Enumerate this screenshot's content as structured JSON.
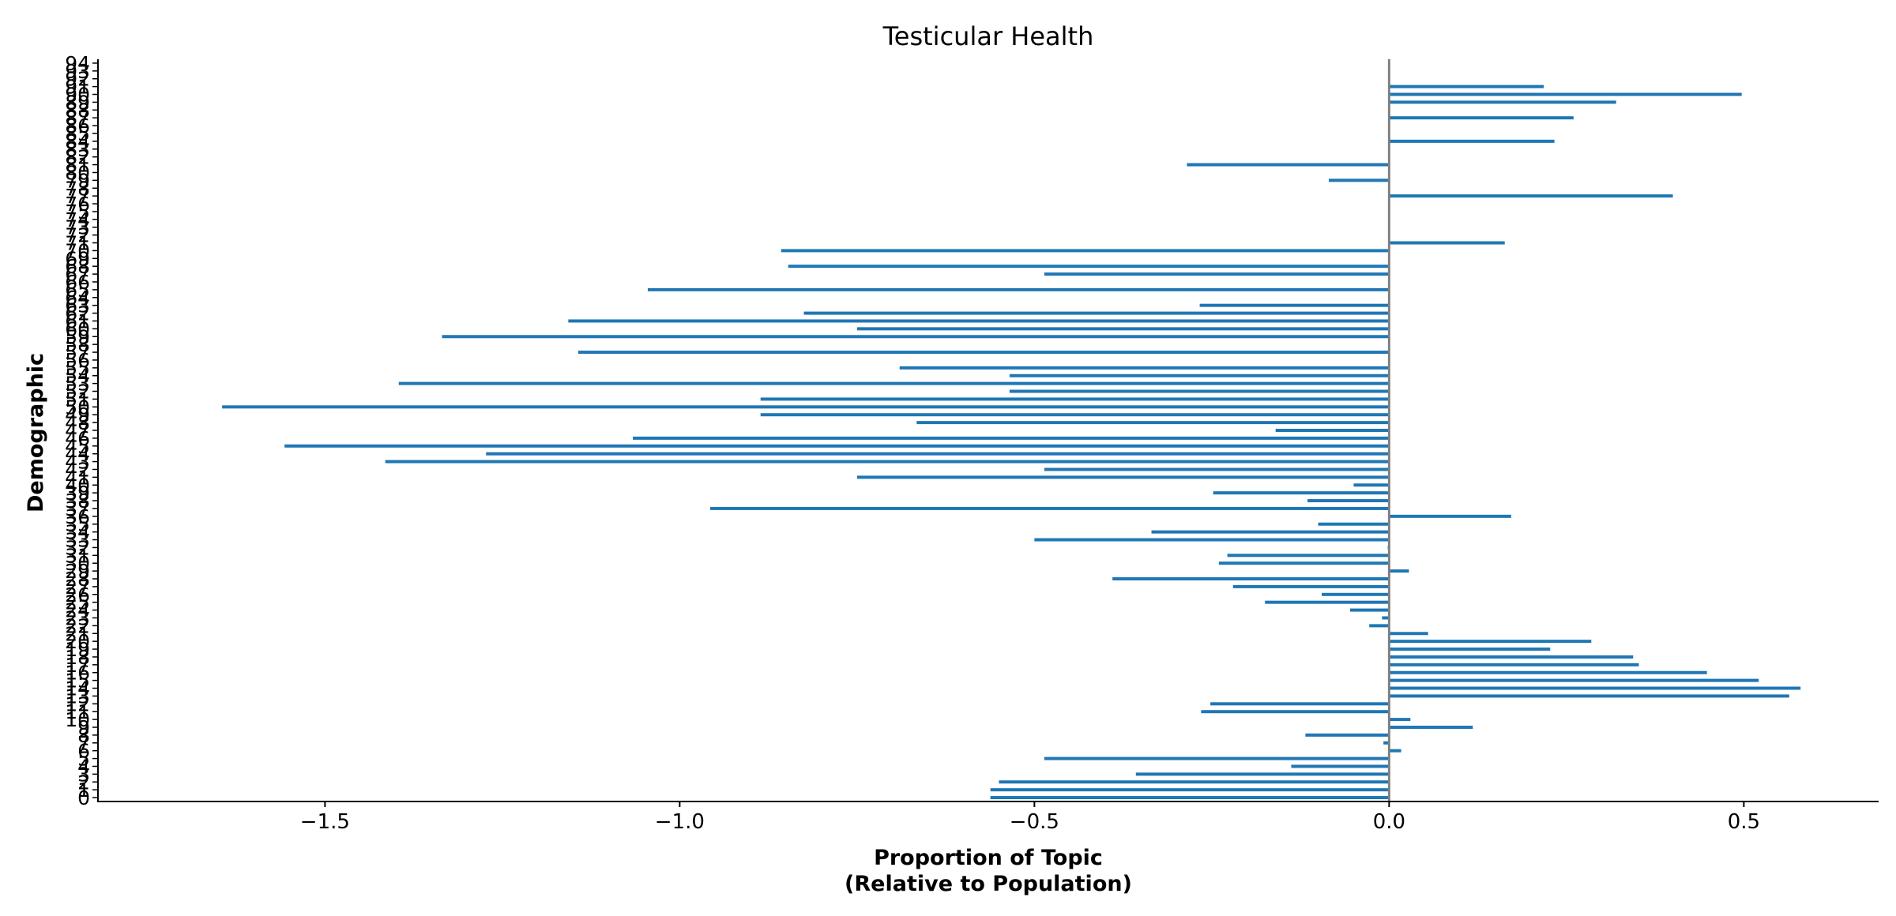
{
  "chart_data": {
    "type": "bar",
    "orientation": "horizontal",
    "title": "Testicular Health",
    "xlabel": [
      "Proportion of Topic",
      "(Relative to Population)"
    ],
    "ylabel": "Demographic",
    "xlim": [
      -1.82,
      0.69
    ],
    "ylim": [
      -0.5,
      94.5
    ],
    "xticks": [
      -1.5,
      -1.0,
      -0.5,
      0.0,
      0.5
    ],
    "xtick_labels": [
      "−1.5",
      "−1.0",
      "−0.5",
      "0.0",
      "0.5"
    ],
    "yticks_step": 1,
    "zero_line": true,
    "grid": false,
    "spines": [
      "left",
      "bottom"
    ],
    "bar_color": "#1f77b4",
    "zero_line_color": "#808080",
    "categories": [
      0,
      1,
      2,
      3,
      4,
      5,
      6,
      7,
      8,
      9,
      10,
      11,
      12,
      13,
      14,
      15,
      16,
      17,
      18,
      19,
      20,
      21,
      22,
      23,
      24,
      25,
      26,
      27,
      28,
      29,
      30,
      31,
      32,
      33,
      34,
      35,
      36,
      37,
      38,
      39,
      40,
      41,
      42,
      43,
      44,
      45,
      46,
      47,
      48,
      49,
      50,
      51,
      52,
      53,
      54,
      55,
      56,
      57,
      58,
      59,
      60,
      61,
      62,
      63,
      64,
      65,
      66,
      67,
      68,
      69,
      70,
      71,
      72,
      73,
      74,
      75,
      76,
      77,
      78,
      79,
      80,
      81,
      82,
      83,
      84,
      85,
      86,
      87,
      88,
      89,
      90,
      91,
      92,
      93,
      94
    ],
    "values": [
      -0.562,
      -0.562,
      -0.55,
      -0.357,
      -0.138,
      -0.486,
      0.017,
      -0.008,
      -0.118,
      0.118,
      0.03,
      -0.265,
      -0.252,
      0.564,
      0.58,
      0.521,
      0.448,
      0.352,
      0.344,
      0.227,
      0.285,
      0.055,
      -0.028,
      -0.01,
      -0.055,
      -0.175,
      -0.095,
      -0.22,
      -0.39,
      0.028,
      -0.24,
      -0.228,
      -0.002,
      -0.5,
      -0.335,
      -0.1,
      0.172,
      -0.957,
      -0.115,
      -0.248,
      -0.05,
      -0.75,
      -0.486,
      -1.415,
      -1.273,
      -1.557,
      -1.066,
      -0.16,
      -0.666,
      -0.886,
      -1.645,
      -0.886,
      -0.535,
      -1.396,
      -0.535,
      -0.69,
      0,
      -1.143,
      0,
      -1.335,
      -0.75,
      -1.157,
      -0.825,
      -0.267,
      0,
      -1.045,
      0,
      -0.486,
      -0.847,
      0,
      -0.857,
      0.163,
      0,
      0,
      0,
      0,
      0,
      0.4,
      0,
      -0.085,
      0,
      -0.285,
      0,
      0,
      0.233,
      0,
      0,
      0.26,
      0,
      0.32,
      0.497,
      0.218,
      0,
      0,
      0
    ]
  }
}
